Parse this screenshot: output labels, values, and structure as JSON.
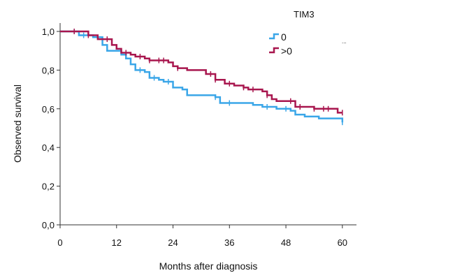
{
  "chart_data": {
    "type": "line",
    "title": "",
    "xlabel": "Months after diagnosis",
    "ylabel": "Observed survival",
    "xlim": [
      0,
      63
    ],
    "ylim": [
      0,
      1.0
    ],
    "xticks": [
      0,
      12,
      24,
      36,
      48,
      60
    ],
    "yticks": [
      0.0,
      0.2,
      0.4,
      0.6,
      0.8,
      1.0
    ],
    "x_tick_labels": [
      "0",
      "12",
      "24",
      "36",
      "48",
      "60"
    ],
    "y_tick_labels": [
      "0,0",
      "0,2",
      "0,4",
      "0,6",
      "0,8",
      "1,0"
    ],
    "grid": false,
    "legend": {
      "title": "TIM3",
      "placement": "top-right",
      "extra_marker": "..."
    },
    "series": [
      {
        "name": "0",
        "color": "#3aa6e8",
        "step_points": [
          [
            0,
            1.0
          ],
          [
            4,
            0.98
          ],
          [
            7,
            0.97
          ],
          [
            9,
            0.93
          ],
          [
            10,
            0.9
          ],
          [
            13,
            0.88
          ],
          [
            14,
            0.86
          ],
          [
            15,
            0.83
          ],
          [
            16,
            0.8
          ],
          [
            18,
            0.79
          ],
          [
            19,
            0.76
          ],
          [
            21,
            0.75
          ],
          [
            22,
            0.74
          ],
          [
            24,
            0.71
          ],
          [
            26,
            0.7
          ],
          [
            27,
            0.67
          ],
          [
            33,
            0.66
          ],
          [
            34,
            0.63
          ],
          [
            41,
            0.62
          ],
          [
            43,
            0.61
          ],
          [
            46,
            0.6
          ],
          [
            49,
            0.59
          ],
          [
            50,
            0.57
          ],
          [
            52,
            0.56
          ],
          [
            55,
            0.55
          ],
          [
            60,
            0.53
          ]
        ],
        "censor_x": [
          3,
          5,
          17,
          20,
          23,
          33,
          36,
          44,
          48,
          60
        ]
      },
      {
        "name": ">0",
        "color": "#a8164e",
        "step_points": [
          [
            0,
            1.0
          ],
          [
            6,
            0.98
          ],
          [
            8,
            0.96
          ],
          [
            11,
            0.93
          ],
          [
            12,
            0.91
          ],
          [
            13,
            0.89
          ],
          [
            15,
            0.88
          ],
          [
            16,
            0.87
          ],
          [
            18,
            0.86
          ],
          [
            19,
            0.85
          ],
          [
            23,
            0.84
          ],
          [
            24,
            0.82
          ],
          [
            25,
            0.81
          ],
          [
            27,
            0.8
          ],
          [
            31,
            0.78
          ],
          [
            33,
            0.75
          ],
          [
            35,
            0.73
          ],
          [
            37,
            0.72
          ],
          [
            39,
            0.71
          ],
          [
            40,
            0.7
          ],
          [
            43,
            0.69
          ],
          [
            44,
            0.67
          ],
          [
            45,
            0.65
          ],
          [
            46,
            0.64
          ],
          [
            50,
            0.61
          ],
          [
            54,
            0.6
          ],
          [
            59,
            0.58
          ],
          [
            60,
            0.58
          ]
        ],
        "censor_x": [
          3,
          6,
          10,
          14,
          17,
          19,
          21,
          22,
          25,
          32,
          33,
          36,
          39,
          41,
          44,
          49,
          51,
          54,
          56,
          57,
          60
        ]
      }
    ]
  }
}
